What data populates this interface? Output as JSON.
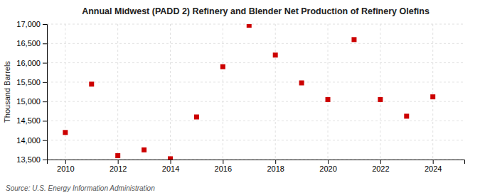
{
  "chart_data": {
    "type": "scatter",
    "title": "Annual Midwest (PADD 2) Refinery and Blender Net Production of Refinery Olefins",
    "ylabel": "Thousand Barrels",
    "annotations": [
      "Source: U.S. Energy Information Administration"
    ],
    "x": [
      2010,
      2011,
      2012,
      2013,
      2014,
      2015,
      2016,
      2017,
      2018,
      2019,
      2020,
      2021,
      2022,
      2023,
      2024
    ],
    "values": [
      14200,
      15450,
      13600,
      13750,
      13520,
      14600,
      15900,
      16970,
      16200,
      15480,
      15050,
      16600,
      15050,
      14620,
      15120
    ],
    "color": "#cc0000",
    "marker": "square",
    "xlim": [
      2009.3,
      2025.2
    ],
    "xticks": [
      2010,
      2012,
      2014,
      2016,
      2018,
      2020,
      2022,
      2024
    ],
    "ylim": [
      13500,
      17000
    ],
    "yticks": [
      {
        "value": 13500,
        "label": "13,500"
      },
      {
        "value": 14000,
        "label": "14,000"
      },
      {
        "value": 14500,
        "label": "14,500"
      },
      {
        "value": 15000,
        "label": "15,000"
      },
      {
        "value": 15500,
        "label": "15,500"
      },
      {
        "value": 16000,
        "label": "16,000"
      },
      {
        "value": 16500,
        "label": "16,500"
      },
      {
        "value": 17000,
        "label": "17,000"
      }
    ],
    "grid": true
  }
}
